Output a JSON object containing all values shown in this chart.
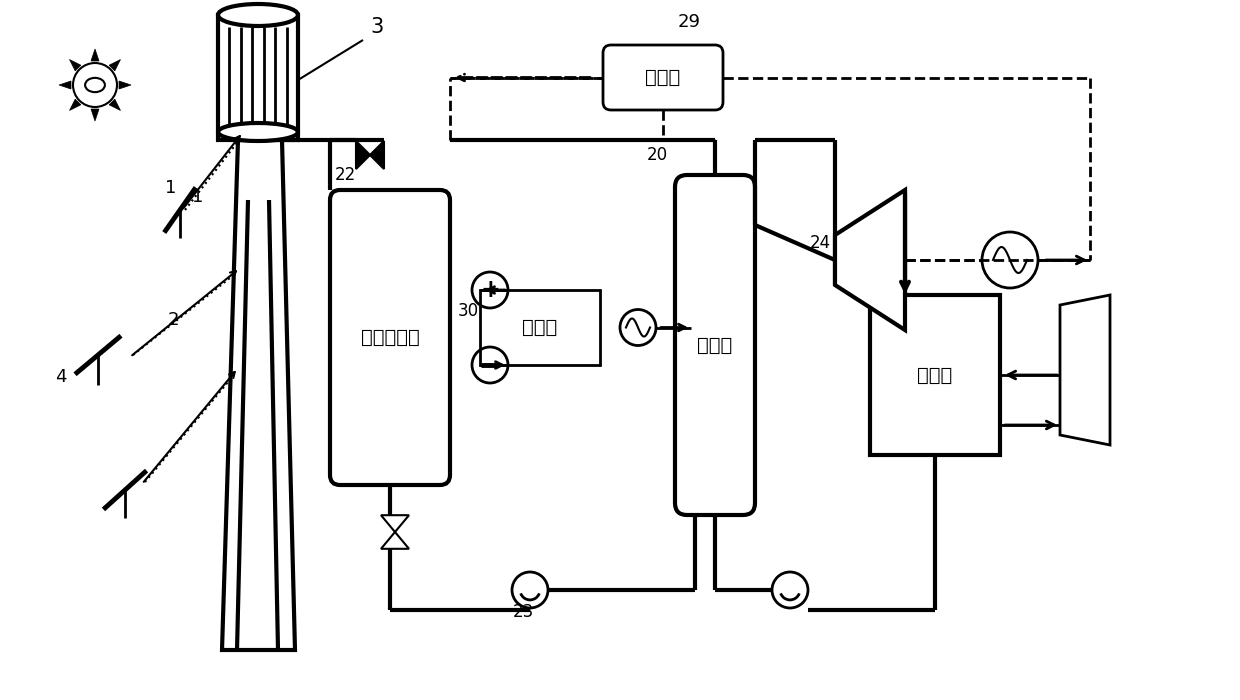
{
  "bg_color": "#ffffff",
  "chinese": {
    "rectifier": "整流器",
    "battery": "储热蓄电池",
    "inverter": "逆变器",
    "evaporator": "蕊发器",
    "condenser": "冷凝器"
  }
}
